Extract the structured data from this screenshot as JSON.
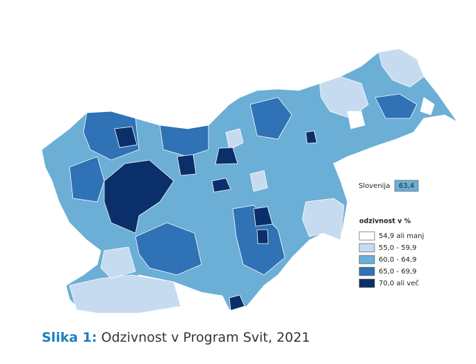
{
  "map": {
    "total_label": "Slovenija",
    "total_value": "63,4",
    "total_color": "#6baed6",
    "legend": {
      "title": "odzivnost v %",
      "items": [
        {
          "label": "54,9 ali manj",
          "color": "#ffffff"
        },
        {
          "label": "55,0 - 59,9",
          "color": "#c6dbef"
        },
        {
          "label": "60,0 - 64,9",
          "color": "#6baed6"
        },
        {
          "label": "65,0 - 69,9",
          "color": "#2f72b6"
        },
        {
          "label": "70,0 ali več",
          "color": "#0b2f6a"
        }
      ]
    }
  },
  "caption": {
    "label": "Slika 1:",
    "text": "Odzivnost v Program Svit, 2021"
  }
}
